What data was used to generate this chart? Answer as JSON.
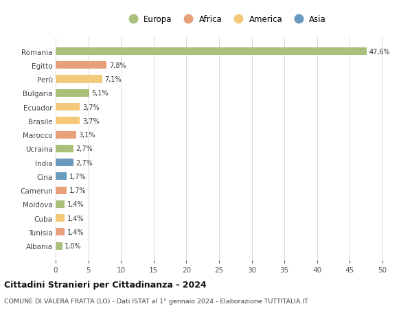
{
  "categories": [
    "Albania",
    "Tunisia",
    "Cuba",
    "Moldova",
    "Camerun",
    "Cina",
    "India",
    "Ucraina",
    "Marocco",
    "Brasile",
    "Ecuador",
    "Bulgaria",
    "Perù",
    "Egitto",
    "Romania"
  ],
  "values": [
    1.0,
    1.4,
    1.4,
    1.4,
    1.7,
    1.7,
    2.7,
    2.7,
    3.1,
    3.7,
    3.7,
    5.1,
    7.1,
    7.8,
    47.6
  ],
  "labels": [
    "1,0%",
    "1,4%",
    "1,4%",
    "1,4%",
    "1,7%",
    "1,7%",
    "2,7%",
    "2,7%",
    "3,1%",
    "3,7%",
    "3,7%",
    "5,1%",
    "7,1%",
    "7,8%",
    "47,6%"
  ],
  "colors": [
    "#a8c07a",
    "#e8a07a",
    "#f5c97a",
    "#a8c07a",
    "#e8a07a",
    "#6b9abf",
    "#6b9abf",
    "#a8c07a",
    "#e8a07a",
    "#f5c97a",
    "#f5c97a",
    "#a8c07a",
    "#f5c97a",
    "#e8a07a",
    "#a8c07a"
  ],
  "legend": [
    {
      "label": "Europa",
      "color": "#a8c07a"
    },
    {
      "label": "Africa",
      "color": "#e8a07a"
    },
    {
      "label": "America",
      "color": "#f5c97a"
    },
    {
      "label": "Asia",
      "color": "#6b9abf"
    }
  ],
  "title": "Cittadini Stranieri per Cittadinanza - 2024",
  "subtitle": "COMUNE DI VALERA FRATTA (LO) - Dati ISTAT al 1° gennaio 2024 - Elaborazione TUTTITALIA.IT",
  "xlim": [
    0,
    52
  ],
  "xticks": [
    0,
    5,
    10,
    15,
    20,
    25,
    30,
    35,
    40,
    45,
    50
  ],
  "background_color": "#ffffff",
  "grid_color": "#d8d8d8",
  "bar_height": 0.55
}
